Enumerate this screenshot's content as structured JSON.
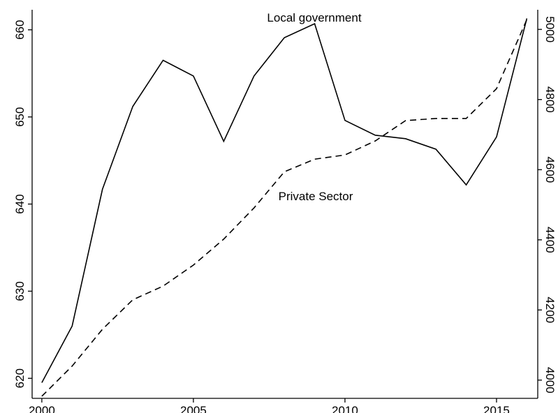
{
  "chart_data": {
    "type": "line",
    "x": [
      2000,
      2001,
      2002,
      2003,
      2004,
      2005,
      2006,
      2007,
      2008,
      2009,
      2010,
      2011,
      2012,
      2013,
      2014,
      2015,
      2016
    ],
    "series": [
      {
        "name": "Local government",
        "color": "#000000",
        "dash": false,
        "values": [
          619.5,
          626.0,
          641.7,
          651.2,
          656.5,
          654.7,
          647.2,
          654.7,
          659.1,
          660.7,
          649.6,
          647.9,
          647.5,
          646.3,
          642.2,
          647.7,
          661.3
        ]
      },
      {
        "name": "Private Sector",
        "color": "#000000",
        "dash": true,
        "axis": "y2",
        "values": [
          3954,
          4040,
          4145,
          4229,
          4268,
          4328,
          4402,
          4491,
          4594,
          4630,
          4642,
          4682,
          4740,
          4746,
          4746,
          4831,
          5028
        ]
      }
    ],
    "xlim": [
      1999.68,
      2016.36
    ],
    "xticks": [
      2000,
      2005,
      2010,
      2015
    ],
    "ylim": [
      617.7,
      662.3
    ],
    "yticks": [
      620,
      630,
      640,
      650,
      660
    ],
    "y2lim": [
      3948,
      5056
    ],
    "y2ticks": [
      4000,
      4200,
      4400,
      4600,
      4800,
      5000
    ],
    "grid": false
  }
}
